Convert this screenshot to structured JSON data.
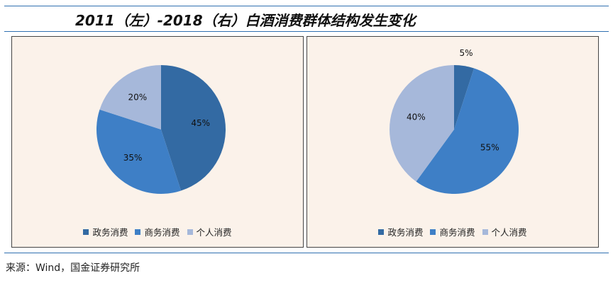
{
  "title": "2011（左）-2018（右）白酒消费群体结构发生变化",
  "source": "来源：Wind，国金证券研究所",
  "chart_data": [
    {
      "type": "pie",
      "categories": [
        "政务消费",
        "商务消费",
        "个人消费"
      ],
      "values": [
        45,
        35,
        20
      ],
      "labels": [
        "45%",
        "35%",
        "20%"
      ],
      "colors": [
        "#336aa3",
        "#3e7fc6",
        "#a6b8da"
      ],
      "legend_position": "bottom"
    },
    {
      "type": "pie",
      "categories": [
        "政务消费",
        "商务消费",
        "个人消费"
      ],
      "values": [
        5,
        55,
        40
      ],
      "labels": [
        "5%",
        "55%",
        "40%"
      ],
      "colors": [
        "#336aa3",
        "#3e7fc6",
        "#a6b8da"
      ],
      "legend_position": "bottom"
    }
  ]
}
